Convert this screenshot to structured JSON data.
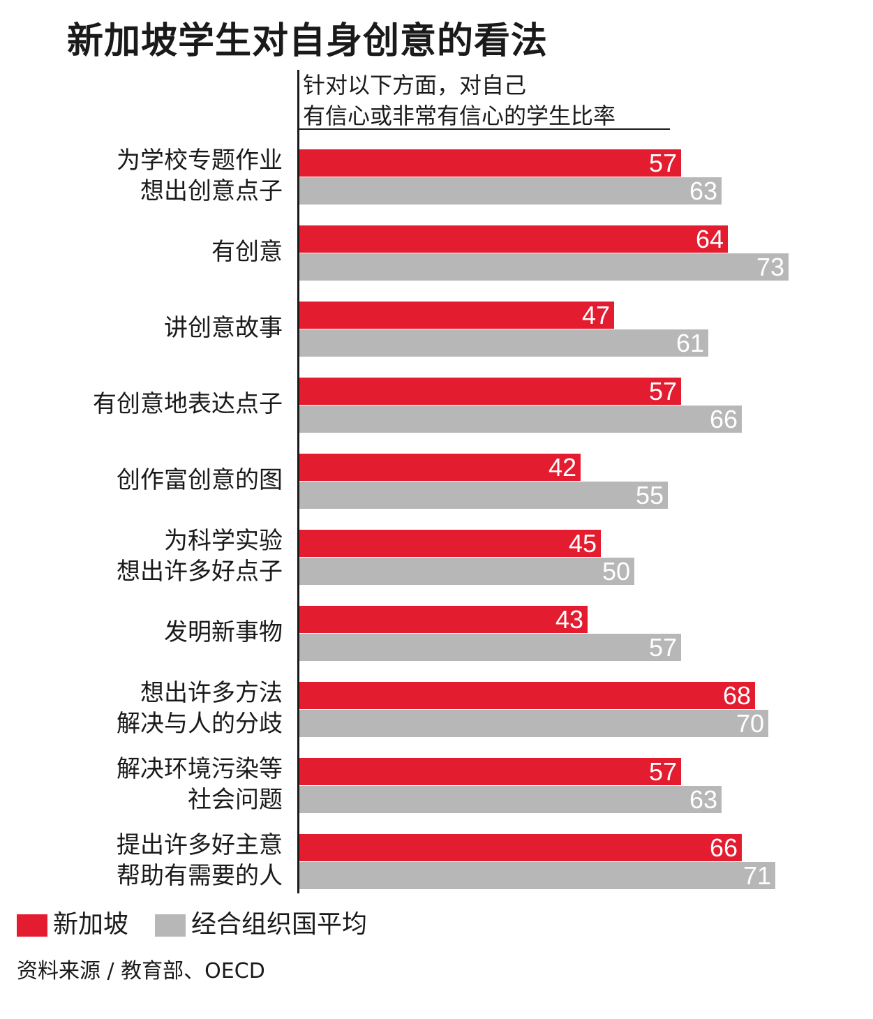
{
  "colors": {
    "singapore": "#e41c2f",
    "oecd": "#b7b7b7"
  },
  "chart_data": {
    "type": "bar",
    "orientation": "horizontal",
    "title": "新加坡学生对自身创意的看法",
    "subtitle_lines": [
      "针对以下方面，对自己",
      "有信心或非常有信心的学生比率"
    ],
    "categories": [
      [
        "为学校专题作业",
        "想出创意点子"
      ],
      [
        "有创意"
      ],
      [
        "讲创意故事"
      ],
      [
        "有创意地表达点子"
      ],
      [
        "创作富创意的图"
      ],
      [
        "为科学实验",
        "想出许多好点子"
      ],
      [
        "发明新事物"
      ],
      [
        "想出许多方法",
        "解决与人的分歧"
      ],
      [
        "解决环境污染等",
        "社会问题"
      ],
      [
        "提出许多好主意",
        "帮助有需要的人"
      ]
    ],
    "series": [
      {
        "name": "新加坡",
        "values": [
          57,
          64,
          47,
          57,
          42,
          45,
          43,
          68,
          57,
          66
        ]
      },
      {
        "name": "经合组织国平均",
        "values": [
          63,
          73,
          61,
          66,
          55,
          50,
          57,
          70,
          63,
          71
        ]
      }
    ],
    "xlim": [
      0,
      100
    ],
    "legend_position": "bottom-left",
    "grid": false
  },
  "source": "资料来源 / 教育部、OECD"
}
